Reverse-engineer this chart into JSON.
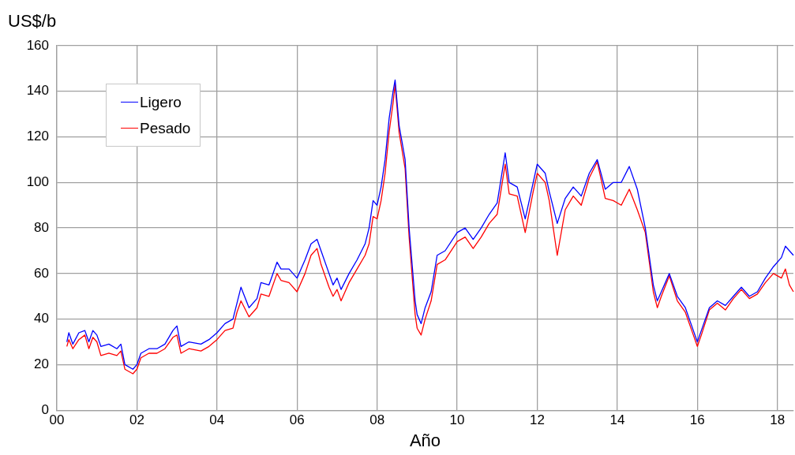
{
  "chart_data": {
    "type": "line",
    "xlabel": "Año",
    "ylabel": "US$/b",
    "x": [
      0.25,
      0.3,
      0.4,
      0.55,
      0.7,
      0.8,
      0.9,
      1.0,
      1.1,
      1.3,
      1.5,
      1.6,
      1.7,
      1.9,
      2.0,
      2.1,
      2.3,
      2.5,
      2.7,
      2.9,
      3.0,
      3.1,
      3.3,
      3.6,
      3.8,
      4.0,
      4.2,
      4.4,
      4.5,
      4.6,
      4.8,
      5.0,
      5.1,
      5.3,
      5.5,
      5.6,
      5.8,
      6.0,
      6.2,
      6.35,
      6.5,
      6.6,
      6.8,
      6.9,
      7.0,
      7.1,
      7.3,
      7.5,
      7.7,
      7.8,
      7.9,
      8.0,
      8.1,
      8.2,
      8.3,
      8.4,
      8.45,
      8.55,
      8.7,
      8.8,
      8.95,
      9.0,
      9.1,
      9.2,
      9.35,
      9.5,
      9.7,
      10.0,
      10.2,
      10.4,
      10.6,
      10.8,
      11.0,
      11.2,
      11.3,
      11.5,
      11.7,
      11.9,
      12.0,
      12.2,
      12.3,
      12.5,
      12.7,
      12.9,
      13.1,
      13.3,
      13.5,
      13.7,
      13.9,
      14.1,
      14.3,
      14.5,
      14.7,
      14.9,
      15.0,
      15.1,
      15.3,
      15.5,
      15.7,
      15.9,
      16.0,
      16.1,
      16.3,
      16.5,
      16.7,
      16.9,
      17.1,
      17.3,
      17.5,
      17.7,
      17.9,
      18.1,
      18.2,
      18.3,
      18.4
    ],
    "series": [
      {
        "name": "Ligero",
        "color": "#0000ff",
        "values": [
          30,
          34,
          29,
          34,
          35,
          30,
          35,
          33,
          28,
          29,
          27,
          29,
          20,
          18,
          20,
          25,
          27,
          27,
          29,
          35,
          37,
          28,
          30,
          29,
          31,
          34,
          38,
          40,
          47,
          54,
          45,
          49,
          56,
          55,
          65,
          62,
          62,
          58,
          66,
          73,
          75,
          70,
          60,
          55,
          58,
          53,
          60,
          66,
          73,
          80,
          92,
          90,
          98,
          110,
          128,
          140,
          145,
          125,
          110,
          80,
          48,
          42,
          38,
          45,
          52,
          68,
          70,
          78,
          80,
          75,
          80,
          86,
          91,
          113,
          100,
          98,
          84,
          100,
          108,
          104,
          96,
          82,
          93,
          98,
          94,
          104,
          110,
          97,
          100,
          100,
          107,
          97,
          80,
          55,
          48,
          52,
          60,
          50,
          45,
          35,
          30,
          35,
          45,
          48,
          46,
          50,
          54,
          50,
          52,
          58,
          63,
          67,
          72,
          70,
          68
        ]
      },
      {
        "name": "Pesado",
        "color": "#ff0000",
        "values": [
          28,
          31,
          27,
          31,
          33,
          27,
          32,
          30,
          24,
          25,
          24,
          26,
          18,
          16,
          18,
          23,
          25,
          25,
          27,
          32,
          33,
          25,
          27,
          26,
          28,
          31,
          35,
          36,
          43,
          48,
          41,
          45,
          51,
          50,
          60,
          57,
          56,
          52,
          60,
          68,
          71,
          64,
          54,
          50,
          53,
          48,
          56,
          62,
          68,
          73,
          85,
          84,
          92,
          104,
          122,
          135,
          143,
          122,
          106,
          76,
          42,
          36,
          33,
          40,
          48,
          64,
          66,
          74,
          76,
          71,
          76,
          82,
          86,
          108,
          95,
          94,
          78,
          96,
          104,
          100,
          92,
          68,
          88,
          94,
          90,
          102,
          109,
          93,
          92,
          90,
          97,
          88,
          78,
          52,
          45,
          50,
          59,
          48,
          43,
          33,
          28,
          33,
          44,
          47,
          44,
          49,
          53,
          49,
          51,
          56,
          60,
          58,
          62,
          55,
          52
        ]
      }
    ],
    "xlim": [
      0,
      18.4
    ],
    "xticks": [
      {
        "value": 0,
        "label": "00"
      },
      {
        "value": 2,
        "label": "02"
      },
      {
        "value": 4,
        "label": "04"
      },
      {
        "value": 6,
        "label": "06"
      },
      {
        "value": 8,
        "label": "08"
      },
      {
        "value": 10,
        "label": "10"
      },
      {
        "value": 12,
        "label": "12"
      },
      {
        "value": 14,
        "label": "14"
      },
      {
        "value": 16,
        "label": "16"
      },
      {
        "value": 18,
        "label": "18"
      }
    ],
    "ylim": [
      0,
      160
    ],
    "yticks": [
      0,
      20,
      40,
      60,
      80,
      100,
      120,
      140,
      160
    ],
    "grid": true,
    "legend": "top left",
    "marker": "none",
    "line_style": "solid"
  }
}
